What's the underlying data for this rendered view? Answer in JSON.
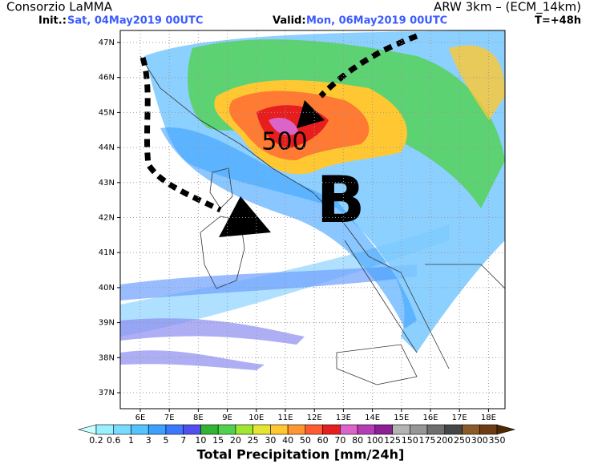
{
  "header": {
    "source": "Consorzio LaMMA",
    "model": "ARW 3km – (ECM_14km)",
    "init_label": "Init.:",
    "init": "Sat, 04May2019 00UTC",
    "valid_label": "Valid:",
    "valid": "Mon, 06May2019 00UTC",
    "lead": "T=+48h"
  },
  "map": {
    "lat_labels": [
      "47N",
      "46N",
      "45N",
      "44N",
      "43N",
      "42N",
      "41N",
      "40N",
      "39N",
      "38N",
      "37N"
    ],
    "lon_labels": [
      "6E",
      "7E",
      "8E",
      "9E",
      "10E",
      "11E",
      "12E",
      "13E",
      "14E",
      "15E",
      "16E",
      "17E",
      "18E"
    ],
    "annotations": [
      "500",
      "B"
    ]
  },
  "colorbar": {
    "labels": [
      "0.2",
      "0.6",
      "1",
      "3",
      "5",
      "7",
      "10",
      "15",
      "20",
      "25",
      "30",
      "40",
      "50",
      "60",
      "70",
      "80",
      "100",
      "125",
      "150",
      "175",
      "200",
      "250",
      "300",
      "350"
    ],
    "colors": [
      "#c8ffff",
      "#9bf0ff",
      "#78dcff",
      "#55c3ff",
      "#3ca0ff",
      "#3c78ff",
      "#5050f0",
      "#32b432",
      "#50d250",
      "#a0e632",
      "#e6e632",
      "#ffc832",
      "#ff9632",
      "#ff5a32",
      "#e61e1e",
      "#dc64c8",
      "#b43cb4",
      "#8c1e96",
      "#b4b4b4",
      "#969696",
      "#6e6e6e",
      "#464646",
      "#8c5a28",
      "#6e3c14",
      "#502800"
    ],
    "title": "Total Precipitation [mm/24h]"
  }
}
